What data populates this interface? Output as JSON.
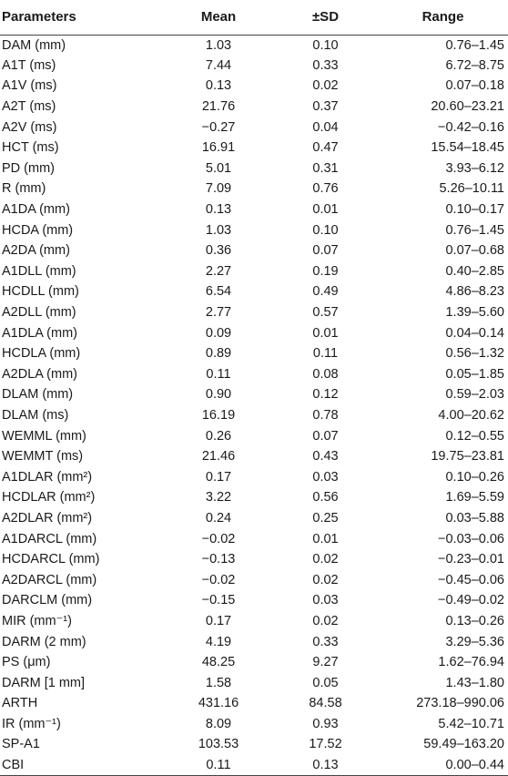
{
  "headers": [
    "Parameters",
    "Mean",
    "±SD",
    "Range"
  ],
  "rows": [
    [
      "DAM (mm)",
      "1.03",
      "0.10",
      "0.76–1.45"
    ],
    [
      "A1T (ms)",
      "7.44",
      "0.33",
      "6.72–8.75"
    ],
    [
      "A1V (ms)",
      "0.13",
      "0.02",
      "0.07–0.18"
    ],
    [
      "A2T (ms)",
      "21.76",
      "0.37",
      "20.60–23.21"
    ],
    [
      "A2V (ms)",
      "−0.27",
      "0.04",
      "−0.42–0.16"
    ],
    [
      "HCT (ms)",
      "16.91",
      "0.47",
      "15.54–18.45"
    ],
    [
      "PD (mm)",
      "5.01",
      "0.31",
      "3.93–6.12"
    ],
    [
      "R (mm)",
      "7.09",
      "0.76",
      "5.26–10.11"
    ],
    [
      "A1DA (mm)",
      "0.13",
      "0.01",
      "0.10–0.17"
    ],
    [
      "HCDA (mm)",
      "1.03",
      "0.10",
      "0.76–1.45"
    ],
    [
      "A2DA (mm)",
      "0.36",
      "0.07",
      "0.07–0.68"
    ],
    [
      "A1DLL (mm)",
      "2.27",
      "0.19",
      "0.40–2.85"
    ],
    [
      "HCDLL (mm)",
      "6.54",
      "0.49",
      "4.86–8.23"
    ],
    [
      "A2DLL (mm)",
      "2.77",
      "0.57",
      "1.39–5.60"
    ],
    [
      "A1DLA (mm)",
      "0.09",
      "0.01",
      "0.04–0.14"
    ],
    [
      "HCDLA (mm)",
      "0.89",
      "0.11",
      "0.56–1.32"
    ],
    [
      "A2DLA (mm)",
      "0.11",
      "0.08",
      "0.05–1.85"
    ],
    [
      "DLAM (mm)",
      "0.90",
      "0.12",
      "0.59–2.03"
    ],
    [
      "DLAM (ms)",
      "16.19",
      "0.78",
      "4.00–20.62"
    ],
    [
      "WEMML (mm)",
      "0.26",
      "0.07",
      "0.12–0.55"
    ],
    [
      "WEMMT (ms)",
      "21.46",
      "0.43",
      "19.75–23.81"
    ],
    [
      "A1DLAR (mm²)",
      "0.17",
      "0.03",
      "0.10–0.26"
    ],
    [
      "HCDLAR (mm²)",
      "3.22",
      "0.56",
      "1.69–5.59"
    ],
    [
      "A2DLAR (mm²)",
      "0.24",
      "0.25",
      "0.03–5.88"
    ],
    [
      "A1DARCL (mm)",
      "−0.02",
      "0.01",
      "−0.03–0.06"
    ],
    [
      "HCDARCL (mm)",
      "−0.13",
      "0.02",
      "−0.23–0.01"
    ],
    [
      "A2DARCL (mm)",
      "−0.02",
      "0.02",
      "−0.45–0.06"
    ],
    [
      "DARCLM (mm)",
      "−0.15",
      "0.03",
      "−0.49–0.02"
    ],
    [
      "MIR (mm⁻¹)",
      "0.17",
      "0.02",
      "0.13–0.26"
    ],
    [
      "DARM (2 mm)",
      "4.19",
      "0.33",
      "3.29–5.36"
    ],
    [
      "PS (μm)",
      "48.25",
      "9.27",
      "1.62–76.94"
    ],
    [
      "DARM [1 mm]",
      "1.58",
      "0.05",
      "1.43–1.80"
    ],
    [
      "ARTH",
      "431.16",
      "84.58",
      "273.18–990.06"
    ],
    [
      "IR (mm⁻¹)",
      "8.09",
      "0.93",
      "5.42–10.71"
    ],
    [
      "SP-A1",
      "103.53",
      "17.52",
      "59.49–163.20"
    ],
    [
      "CBI",
      "0.11",
      "0.13",
      "0.00–0.44"
    ]
  ]
}
